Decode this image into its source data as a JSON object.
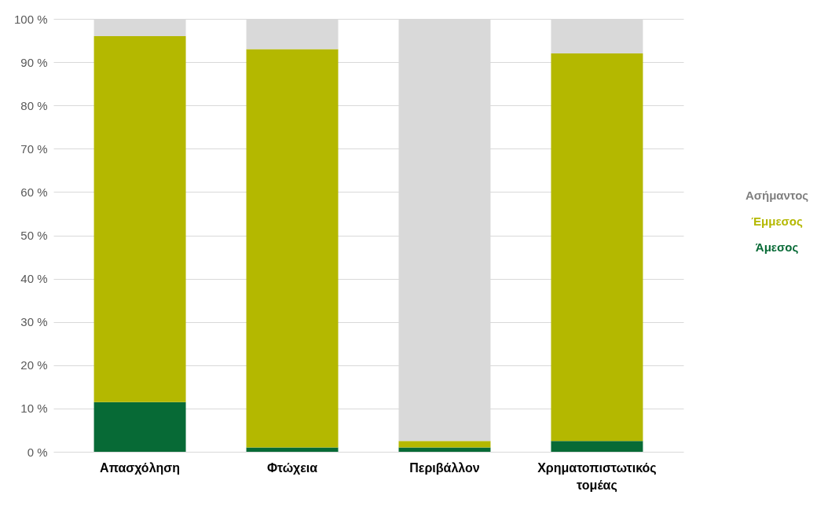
{
  "chart_data": {
    "type": "bar",
    "stacked": true,
    "categories": [
      "Απασχόληση",
      "Φτώχεια",
      "Περιβάλλον",
      "Χρηματοπιστωτικός τομέας"
    ],
    "series": [
      {
        "name": "Άμεσος",
        "color": "#076a36",
        "values": [
          11.5,
          1,
          1,
          2.5
        ]
      },
      {
        "name": "Έμμεσος",
        "color": "#b4b800",
        "values": [
          84.5,
          92,
          1.5,
          89.5
        ]
      },
      {
        "name": "Ασήμαντος",
        "color": "#d9d9d9",
        "values": [
          4,
          7,
          97.5,
          8
        ]
      }
    ],
    "ylim": [
      0,
      100
    ],
    "yticks": [
      {
        "value": 0,
        "label": "0 %"
      },
      {
        "value": 10,
        "label": "10 %"
      },
      {
        "value": 20,
        "label": "20 %"
      },
      {
        "value": 30,
        "label": "30 %"
      },
      {
        "value": 40,
        "label": "40 %"
      },
      {
        "value": 50,
        "label": "50 %"
      },
      {
        "value": 60,
        "label": "60 %"
      },
      {
        "value": 70,
        "label": "70 %"
      },
      {
        "value": 80,
        "label": "80 %"
      },
      {
        "value": 90,
        "label": "90 %"
      },
      {
        "value": 100,
        "label": "100 %"
      }
    ],
    "grid": "y",
    "legend": "right"
  }
}
